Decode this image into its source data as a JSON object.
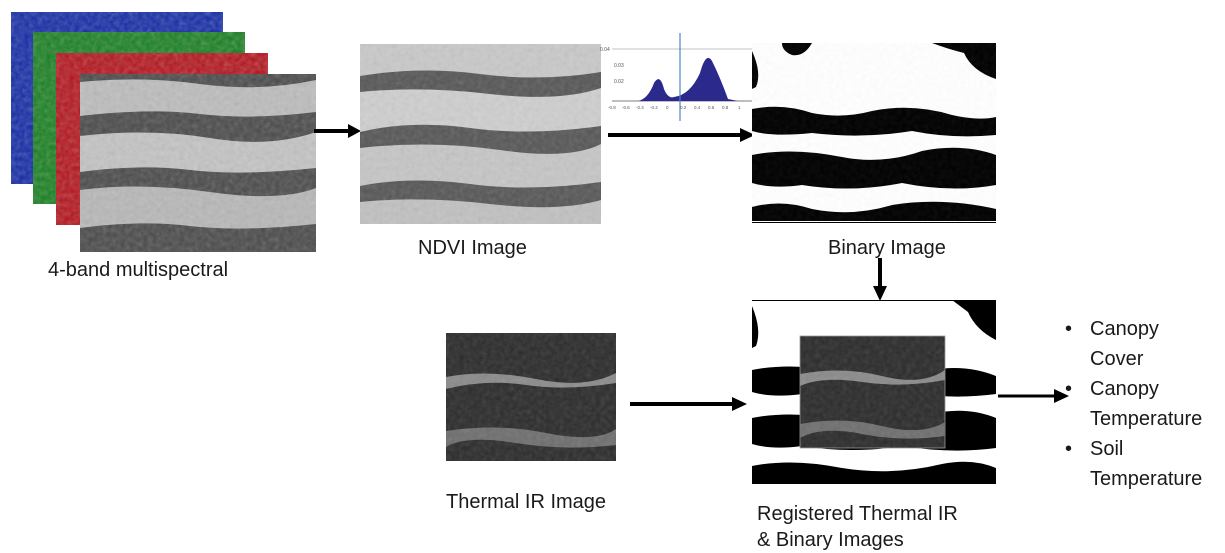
{
  "colors": {
    "band_blue": "#1530b8",
    "band_green": "#1d8f2a",
    "band_red": "#c8141a",
    "histogram_fill": "#2b2a8c",
    "threshold_line": "#4a86c8",
    "arrow": "#000000"
  },
  "labels": {
    "multispectral": "4-band multispectral",
    "ndvi": "NDVI Image",
    "binary": "Binary Image",
    "thermal": "Thermal IR Image",
    "registered_line1": "Registered Thermal IR",
    "registered_line2": "& Binary Images"
  },
  "histogram": {
    "y_ticks": [
      "0.04",
      "0.03",
      "0.02"
    ],
    "x_ticks": [
      "-0.8",
      "-0.6",
      "-0.4",
      "-0.2",
      "0",
      "0.2",
      "0.4",
      "0.6",
      "0.8",
      "1"
    ]
  },
  "outputs": [
    {
      "line1": "Canopy",
      "line2": "Cover"
    },
    {
      "line1": "Canopy",
      "line2": "Temperature"
    },
    {
      "line1": "Soil",
      "line2": "Temperature"
    }
  ],
  "bullet_glyph": "•"
}
